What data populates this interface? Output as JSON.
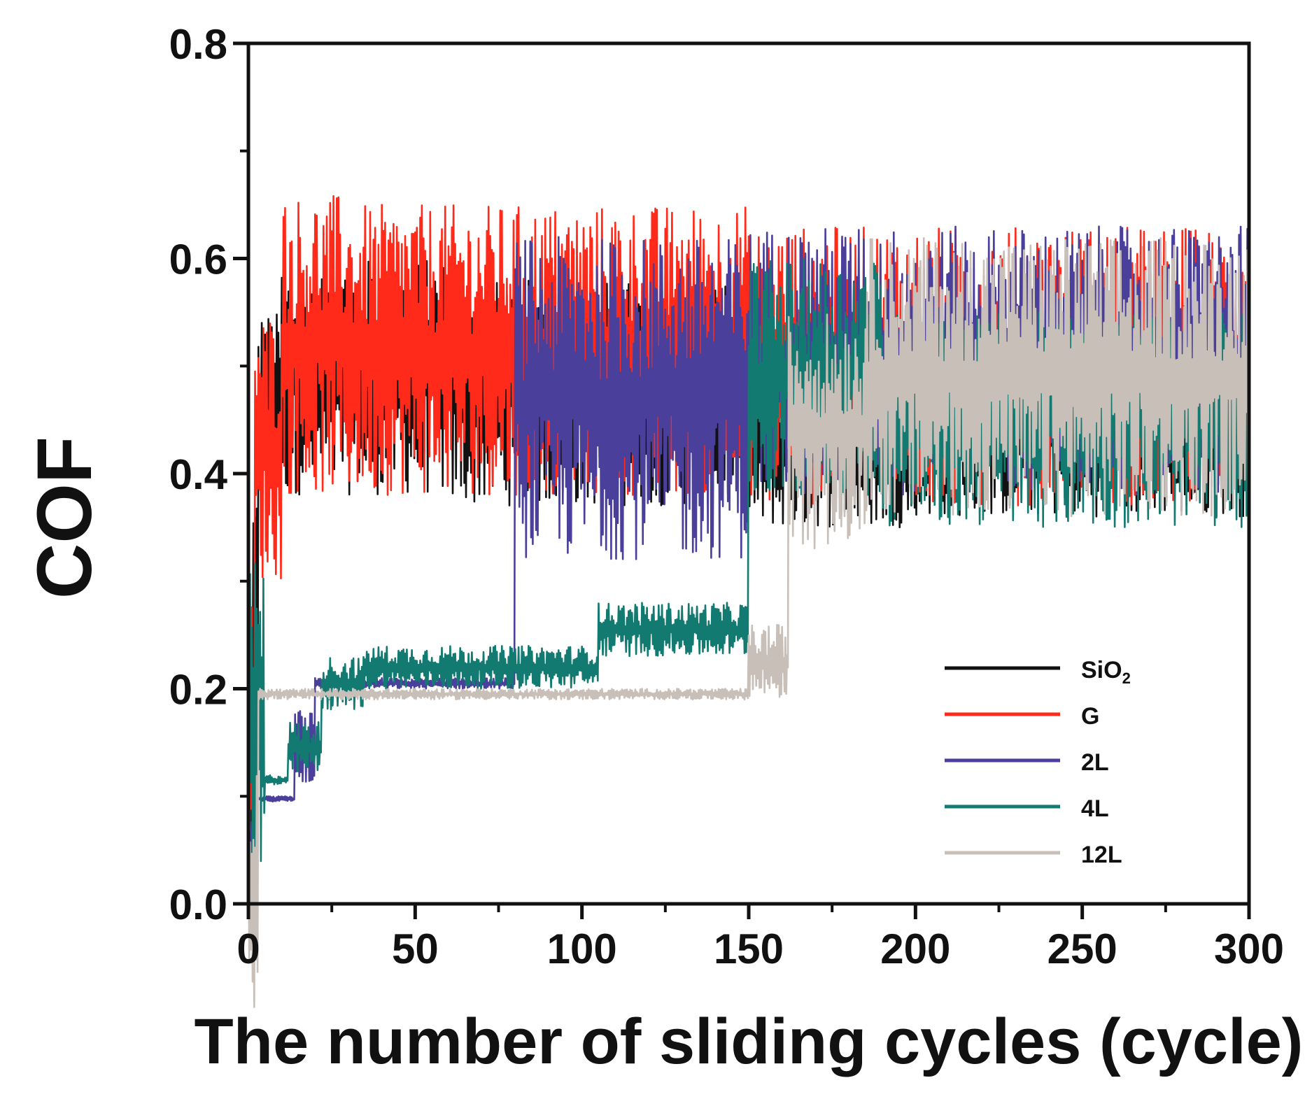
{
  "chart_data": {
    "type": "line",
    "title": "",
    "xlabel": "The number of sliding cycles (cycle)",
    "ylabel": "COF",
    "xlim": [
      0,
      300
    ],
    "ylim": [
      0,
      0.8
    ],
    "x_ticks": [
      "0",
      "50",
      "100",
      "150",
      "200",
      "250",
      "300"
    ],
    "y_ticks": [
      "0.0",
      "0.2",
      "0.4",
      "0.6",
      "0.8"
    ],
    "grid": false,
    "legend_position": "bottom-right",
    "series": [
      {
        "name": "SiO2",
        "color": "#111111",
        "segments": [
          {
            "from": 0,
            "to": 1,
            "lo": 0.0,
            "hi": 0.05
          },
          {
            "from": 1,
            "to": 3,
            "lo": 0.05,
            "hi": 0.4
          },
          {
            "from": 3,
            "to": 10,
            "lo": 0.38,
            "hi": 0.55
          },
          {
            "from": 10,
            "to": 60,
            "lo": 0.38,
            "hi": 0.6
          },
          {
            "from": 60,
            "to": 150,
            "lo": 0.37,
            "hi": 0.58
          },
          {
            "from": 150,
            "to": 200,
            "lo": 0.35,
            "hi": 0.5
          },
          {
            "from": 200,
            "to": 300,
            "lo": 0.36,
            "hi": 0.52
          }
        ]
      },
      {
        "name": "G",
        "color": "#ff2a1a",
        "segments": [
          {
            "from": 0,
            "to": 2,
            "lo": 0.0,
            "hi": 0.3
          },
          {
            "from": 2,
            "to": 10,
            "lo": 0.3,
            "hi": 0.55
          },
          {
            "from": 10,
            "to": 30,
            "lo": 0.38,
            "hi": 0.66
          },
          {
            "from": 30,
            "to": 150,
            "lo": 0.38,
            "hi": 0.65
          },
          {
            "from": 150,
            "to": 300,
            "lo": 0.37,
            "hi": 0.63
          }
        ]
      },
      {
        "name": "2L",
        "color": "#4a3f9a",
        "segments": [
          {
            "from": 0,
            "to": 2,
            "lo": 0.0,
            "hi": 0.1
          },
          {
            "from": 2,
            "to": 14,
            "lo": 0.095,
            "hi": 0.1
          },
          {
            "from": 14,
            "to": 20,
            "lo": 0.11,
            "hi": 0.18
          },
          {
            "from": 20,
            "to": 80,
            "lo": 0.2,
            "hi": 0.21
          },
          {
            "from": 80,
            "to": 150,
            "lo": 0.32,
            "hi": 0.62
          },
          {
            "from": 150,
            "to": 300,
            "lo": 0.38,
            "hi": 0.63
          }
        ]
      },
      {
        "name": "4L",
        "color": "#127a70",
        "segments": [
          {
            "from": 0,
            "to": 5,
            "lo": 0.0,
            "hi": 0.32
          },
          {
            "from": 5,
            "to": 12,
            "lo": 0.11,
            "hi": 0.12
          },
          {
            "from": 12,
            "to": 22,
            "lo": 0.12,
            "hi": 0.17
          },
          {
            "from": 22,
            "to": 35,
            "lo": 0.18,
            "hi": 0.23
          },
          {
            "from": 35,
            "to": 105,
            "lo": 0.2,
            "hi": 0.24
          },
          {
            "from": 105,
            "to": 150,
            "lo": 0.23,
            "hi": 0.28
          },
          {
            "from": 150,
            "to": 190,
            "lo": 0.38,
            "hi": 0.6
          },
          {
            "from": 190,
            "to": 300,
            "lo": 0.35,
            "hi": 0.55
          }
        ]
      },
      {
        "name": "12L",
        "color": "#c8bfb9",
        "segments": [
          {
            "from": 0,
            "to": 3,
            "lo": -0.1,
            "hi": 0.13
          },
          {
            "from": 3,
            "to": 150,
            "lo": 0.19,
            "hi": 0.2
          },
          {
            "from": 150,
            "to": 162,
            "lo": 0.19,
            "hi": 0.26
          },
          {
            "from": 162,
            "to": 185,
            "lo": 0.33,
            "hi": 0.55
          },
          {
            "from": 185,
            "to": 300,
            "lo": 0.36,
            "hi": 0.62
          }
        ]
      }
    ],
    "legend": [
      {
        "label": "SiO",
        "sub": "2",
        "color": "#111111"
      },
      {
        "label": "G",
        "sub": "",
        "color": "#ff2a1a"
      },
      {
        "label": "2L",
        "sub": "",
        "color": "#4a3f9a"
      },
      {
        "label": "4L",
        "sub": "",
        "color": "#127a70"
      },
      {
        "label": "12L",
        "sub": "",
        "color": "#c8bfb9"
      }
    ]
  }
}
